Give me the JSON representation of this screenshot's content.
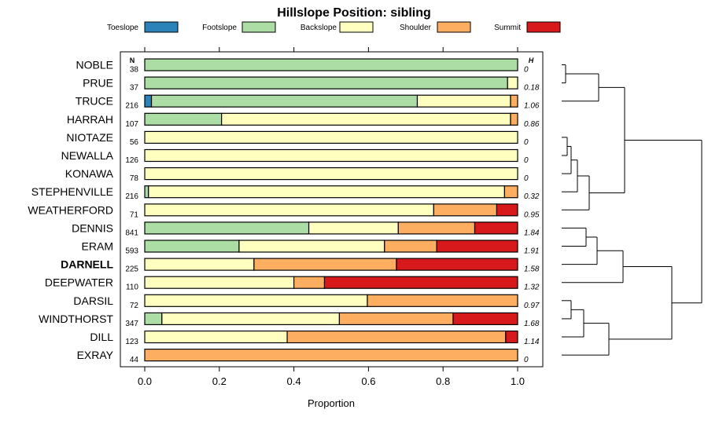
{
  "chart_data": {
    "type": "bar",
    "orientation": "horizontal-stacked",
    "title": "Hillslope Position: sibling",
    "xlabel": "Proportion",
    "xlim": [
      0,
      1
    ],
    "xticks": [
      "0.0",
      "0.2",
      "0.4",
      "0.6",
      "0.8",
      "1.0"
    ],
    "n_header": "N",
    "h_header": "H",
    "highlight": "DARNELL",
    "legend": [
      {
        "name": "Toeslope",
        "color": "#2b83ba"
      },
      {
        "name": "Footslope",
        "color": "#abdda4"
      },
      {
        "name": "Backslope",
        "color": "#ffffbf"
      },
      {
        "name": "Shoulder",
        "color": "#fdae61"
      },
      {
        "name": "Summit",
        "color": "#d7191c"
      }
    ],
    "rows": [
      {
        "name": "NOBLE",
        "n": "38",
        "h": "0",
        "values": [
          0,
          1.0,
          0,
          0,
          0
        ]
      },
      {
        "name": "PRUE",
        "n": "37",
        "h": "0.18",
        "values": [
          0,
          0.973,
          0.027,
          0,
          0
        ]
      },
      {
        "name": "TRUCE",
        "n": "216",
        "h": "1.06",
        "values": [
          0.018,
          0.713,
          0.25,
          0.019,
          0
        ]
      },
      {
        "name": "HARRAH",
        "n": "107",
        "h": "0.86",
        "values": [
          0,
          0.206,
          0.775,
          0.019,
          0
        ]
      },
      {
        "name": "NIOTAZE",
        "n": "56",
        "h": "0",
        "values": [
          0,
          0,
          1.0,
          0,
          0
        ]
      },
      {
        "name": "NEWALLA",
        "n": "126",
        "h": "0",
        "values": [
          0,
          0,
          1.0,
          0,
          0
        ]
      },
      {
        "name": "KONAWA",
        "n": "78",
        "h": "0",
        "values": [
          0,
          0,
          1.0,
          0,
          0
        ]
      },
      {
        "name": "STEPHENVILLE",
        "n": "216",
        "h": "0.32",
        "values": [
          0,
          0.01,
          0.955,
          0.035,
          0
        ]
      },
      {
        "name": "WEATHERFORD",
        "n": "71",
        "h": "0.95",
        "values": [
          0,
          0,
          0.775,
          0.169,
          0.056
        ]
      },
      {
        "name": "DENNIS",
        "n": "841",
        "h": "1.84",
        "values": [
          0,
          0.44,
          0.24,
          0.205,
          0.115
        ]
      },
      {
        "name": "ERAM",
        "n": "593",
        "h": "1.91",
        "values": [
          0,
          0.253,
          0.39,
          0.14,
          0.217
        ]
      },
      {
        "name": "DARNELL",
        "n": "225",
        "h": "1.58",
        "values": [
          0,
          0,
          0.293,
          0.382,
          0.325
        ]
      },
      {
        "name": "DEEPWATER",
        "n": "110",
        "h": "1.32",
        "values": [
          0,
          0,
          0.4,
          0.082,
          0.518
        ]
      },
      {
        "name": "DARSIL",
        "n": "72",
        "h": "0.97",
        "values": [
          0,
          0,
          0.597,
          0.403,
          0
        ]
      },
      {
        "name": "WINDTHORST",
        "n": "347",
        "h": "1.68",
        "values": [
          0,
          0.046,
          0.476,
          0.305,
          0.173
        ]
      },
      {
        "name": "DILL",
        "n": "123",
        "h": "1.14",
        "values": [
          0,
          0,
          0.382,
          0.586,
          0.032
        ]
      },
      {
        "name": "EXRAY",
        "n": "44",
        "h": "0",
        "values": [
          0,
          0,
          0,
          1.0,
          0
        ]
      }
    ]
  }
}
